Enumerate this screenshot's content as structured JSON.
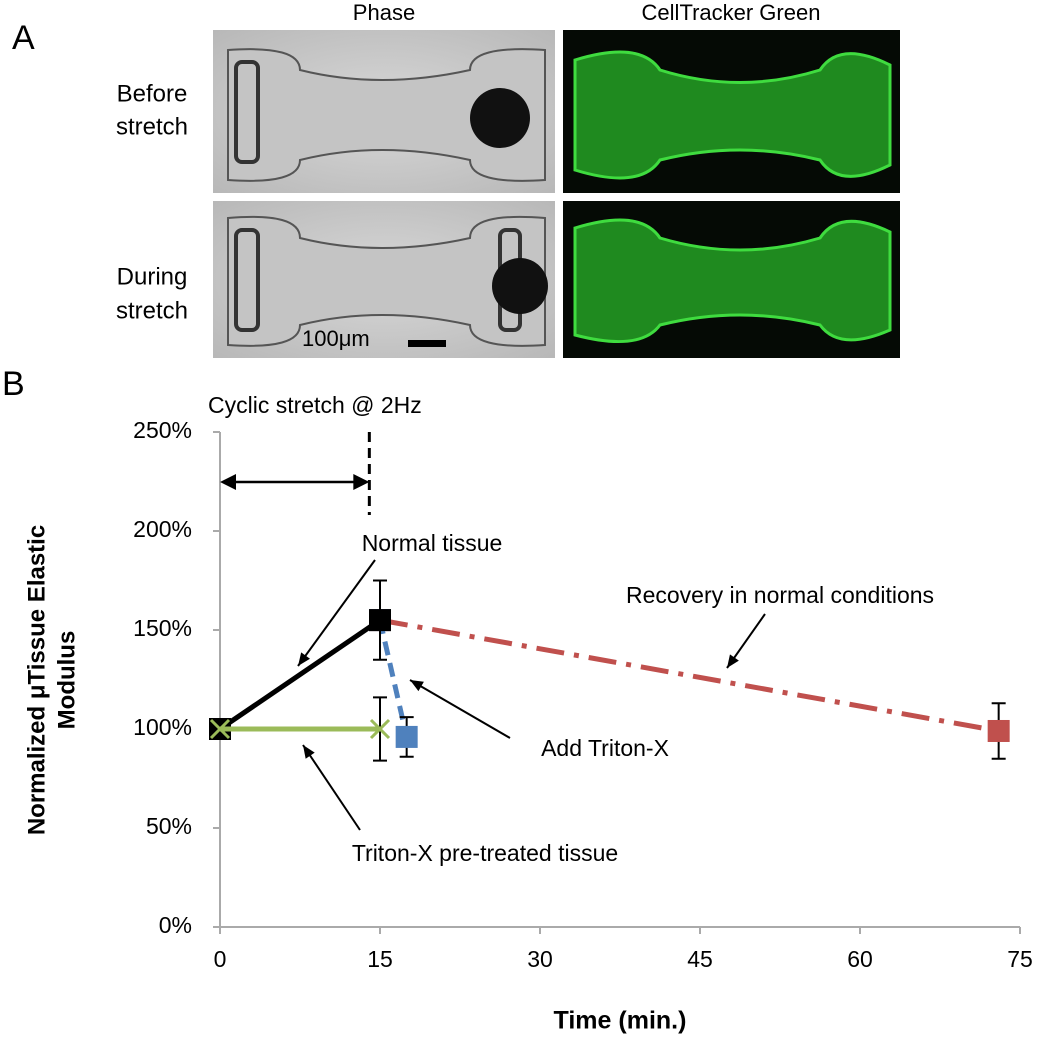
{
  "panel_a": {
    "label": "A",
    "columns": [
      "Phase",
      "CellTracker Green"
    ],
    "rows": [
      [
        "Before",
        "stretch"
      ],
      [
        "During",
        "stretch"
      ]
    ],
    "scale_bar": "100μm"
  },
  "chart_data": {
    "type": "line",
    "panel_label": "B",
    "xlabel": "Time (min.)",
    "ylabel": [
      "Normalized μTissue Elastic",
      "Modulus"
    ],
    "xlim": [
      0,
      75
    ],
    "xticks": [
      0,
      15,
      30,
      45,
      60,
      75
    ],
    "ylim": [
      0,
      250
    ],
    "yticks": [
      {
        "value": 0,
        "label": "0%"
      },
      {
        "value": 50,
        "label": "50%"
      },
      {
        "value": 100,
        "label": "100%"
      },
      {
        "value": 150,
        "label": "150%"
      },
      {
        "value": 200,
        "label": "200%"
      },
      {
        "value": 250,
        "label": "250%"
      }
    ],
    "grid": false,
    "span": {
      "label": "Cyclic stretch @ 2Hz",
      "x": [
        0,
        14
      ]
    },
    "series": [
      {
        "name": "Recovery in normal conditions",
        "color": "#c0504d",
        "dash": "dashdot",
        "marker": "square",
        "x": [
          15,
          73
        ],
        "values": [
          155,
          99
        ],
        "errors": [
          null,
          14
        ]
      },
      {
        "name": "Add Triton-X",
        "color": "#4f81bd",
        "dash": "dashed",
        "marker": "square",
        "x": [
          15,
          17.5
        ],
        "values": [
          155,
          96
        ],
        "errors": [
          null,
          10
        ]
      },
      {
        "name": "Normal tissue",
        "color": "#000000",
        "dash": "solid",
        "marker": "square",
        "x": [
          0,
          15
        ],
        "values": [
          100,
          155
        ],
        "errors": [
          null,
          20
        ]
      },
      {
        "name": "Triton-X pre-treated tissue",
        "color": "#9bbb59",
        "dash": "solid",
        "marker": "x",
        "x": [
          0,
          15
        ],
        "values": [
          100,
          100
        ],
        "errors": [
          null,
          16
        ]
      }
    ]
  }
}
